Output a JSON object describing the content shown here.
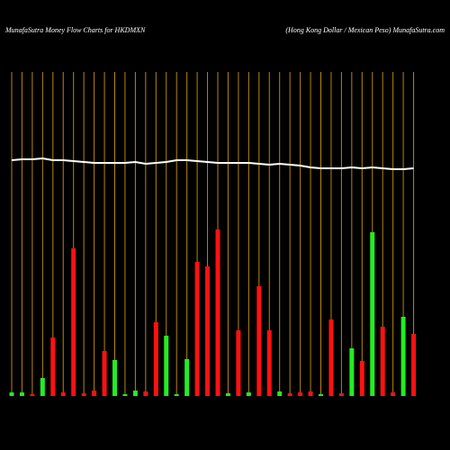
{
  "chart_data": {
    "type": "bar",
    "title": "MunafaSutra  Money Flow  Charts for HKDMXN",
    "subtitle": "(Hong Kong Dollar / Mexican  Peso) MunafaSutra.com",
    "categories": [
      null,
      null,
      null,
      null,
      null,
      null,
      null,
      null,
      null,
      null,
      null,
      null,
      null,
      null,
      null,
      null,
      null,
      null,
      null,
      null,
      null,
      null,
      null,
      null,
      null,
      null,
      null,
      null,
      null,
      null,
      null,
      null,
      null,
      null,
      null,
      null,
      null,
      null,
      null,
      null
    ],
    "values": [
      4,
      4,
      2,
      20,
      65,
      4,
      164,
      3,
      6,
      50,
      40,
      2,
      6,
      5,
      82,
      67,
      2,
      41,
      149,
      144,
      185,
      3,
      73,
      4,
      122,
      73,
      5,
      3,
      4,
      5,
      2,
      85,
      3,
      53,
      39,
      182,
      77,
      4,
      88,
      69
    ],
    "colors": [
      "#22ee22",
      "#22ee22",
      "#ff1111",
      "#22ee22",
      "#ff1111",
      "#ff1111",
      "#ff1111",
      "#ff1111",
      "#ff1111",
      "#ff1111",
      "#22ee22",
      "#22ee22",
      "#22ee22",
      "#ff1111",
      "#ff1111",
      "#22ee22",
      "#22ee22",
      "#22ee22",
      "#ff1111",
      "#ff1111",
      "#ff1111",
      "#22ee22",
      "#ff1111",
      "#22ee22",
      "#ff1111",
      "#ff1111",
      "#22ee22",
      "#ff1111",
      "#ff1111",
      "#ff1111",
      "#22ee22",
      "#ff1111",
      "#ff1111",
      "#22ee22",
      "#ff1111",
      "#22ee22",
      "#ff1111",
      "#ff1111",
      "#22ee22",
      "#ff1111"
    ],
    "line": {
      "color": "#ffffff",
      "values": [
        262,
        263,
        263,
        264,
        262,
        262,
        261,
        260,
        259,
        259,
        259,
        259,
        260,
        258,
        259,
        260,
        262,
        262,
        261,
        260,
        259,
        259,
        259,
        259,
        258,
        257,
        258,
        257,
        256,
        254,
        253,
        253,
        253,
        254,
        253,
        254,
        253,
        252,
        252,
        253
      ]
    },
    "ylim": [
      0,
      360
    ],
    "grid_color": "#b8860b"
  }
}
